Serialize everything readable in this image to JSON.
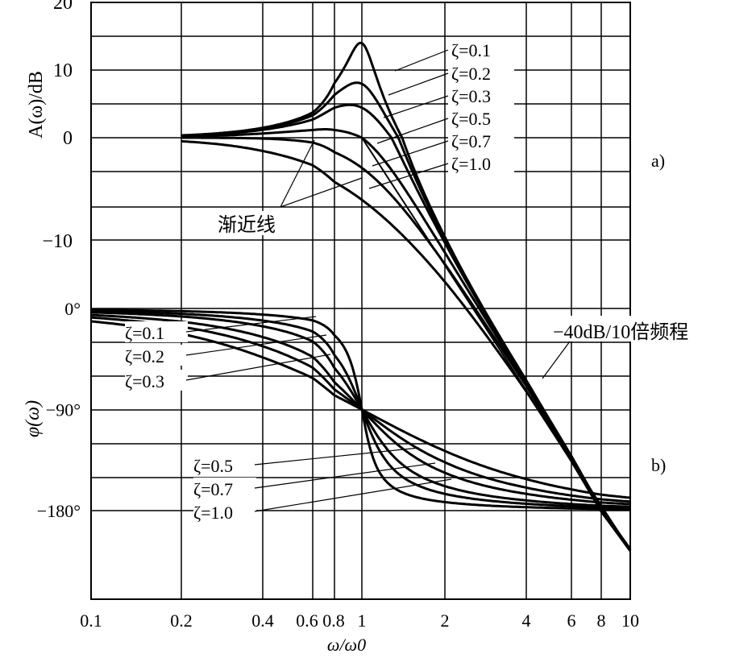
{
  "chart_data": {
    "type": "line",
    "title": "",
    "xlabel": "ω/ω0",
    "xscale": "log",
    "xlim": [
      0.1,
      10
    ],
    "x_ticks": [
      "0.1",
      "0.2",
      "0.4",
      "0.6",
      "0.8",
      "1",
      "2",
      "4",
      "6",
      "8",
      "10"
    ],
    "panels": [
      {
        "id": "a",
        "tag": "a)",
        "ylabel": "A(ω)/dB",
        "ylim": [
          -20,
          20
        ],
        "y_ticks": [
          {
            "v": 20,
            "label": "20"
          },
          {
            "v": 10,
            "label": "10"
          },
          {
            "v": 0,
            "label": "0"
          },
          {
            "v": -10,
            "label": "−10"
          }
        ],
        "asymptote_label": "渐近线",
        "slope_label": "−40dB/10倍频程",
        "series_start_x": 0.2
      },
      {
        "id": "b",
        "tag": "b)",
        "ylabel": "φ(ω)",
        "ylim": [
          -270,
          0
        ],
        "y_ticks": [
          {
            "v": 0,
            "label": "0°"
          },
          {
            "v": -90,
            "label": "−90°"
          },
          {
            "v": -180,
            "label": "−180°"
          }
        ]
      }
    ],
    "series": [
      {
        "name": "ζ=0.1",
        "zeta": 0.1
      },
      {
        "name": "ζ=0.2",
        "zeta": 0.2
      },
      {
        "name": "ζ=0.3",
        "zeta": 0.3
      },
      {
        "name": "ζ=0.5",
        "zeta": 0.5
      },
      {
        "name": "ζ=0.7",
        "zeta": 0.7
      },
      {
        "name": "ζ=1.0",
        "zeta": 1.0
      }
    ]
  }
}
